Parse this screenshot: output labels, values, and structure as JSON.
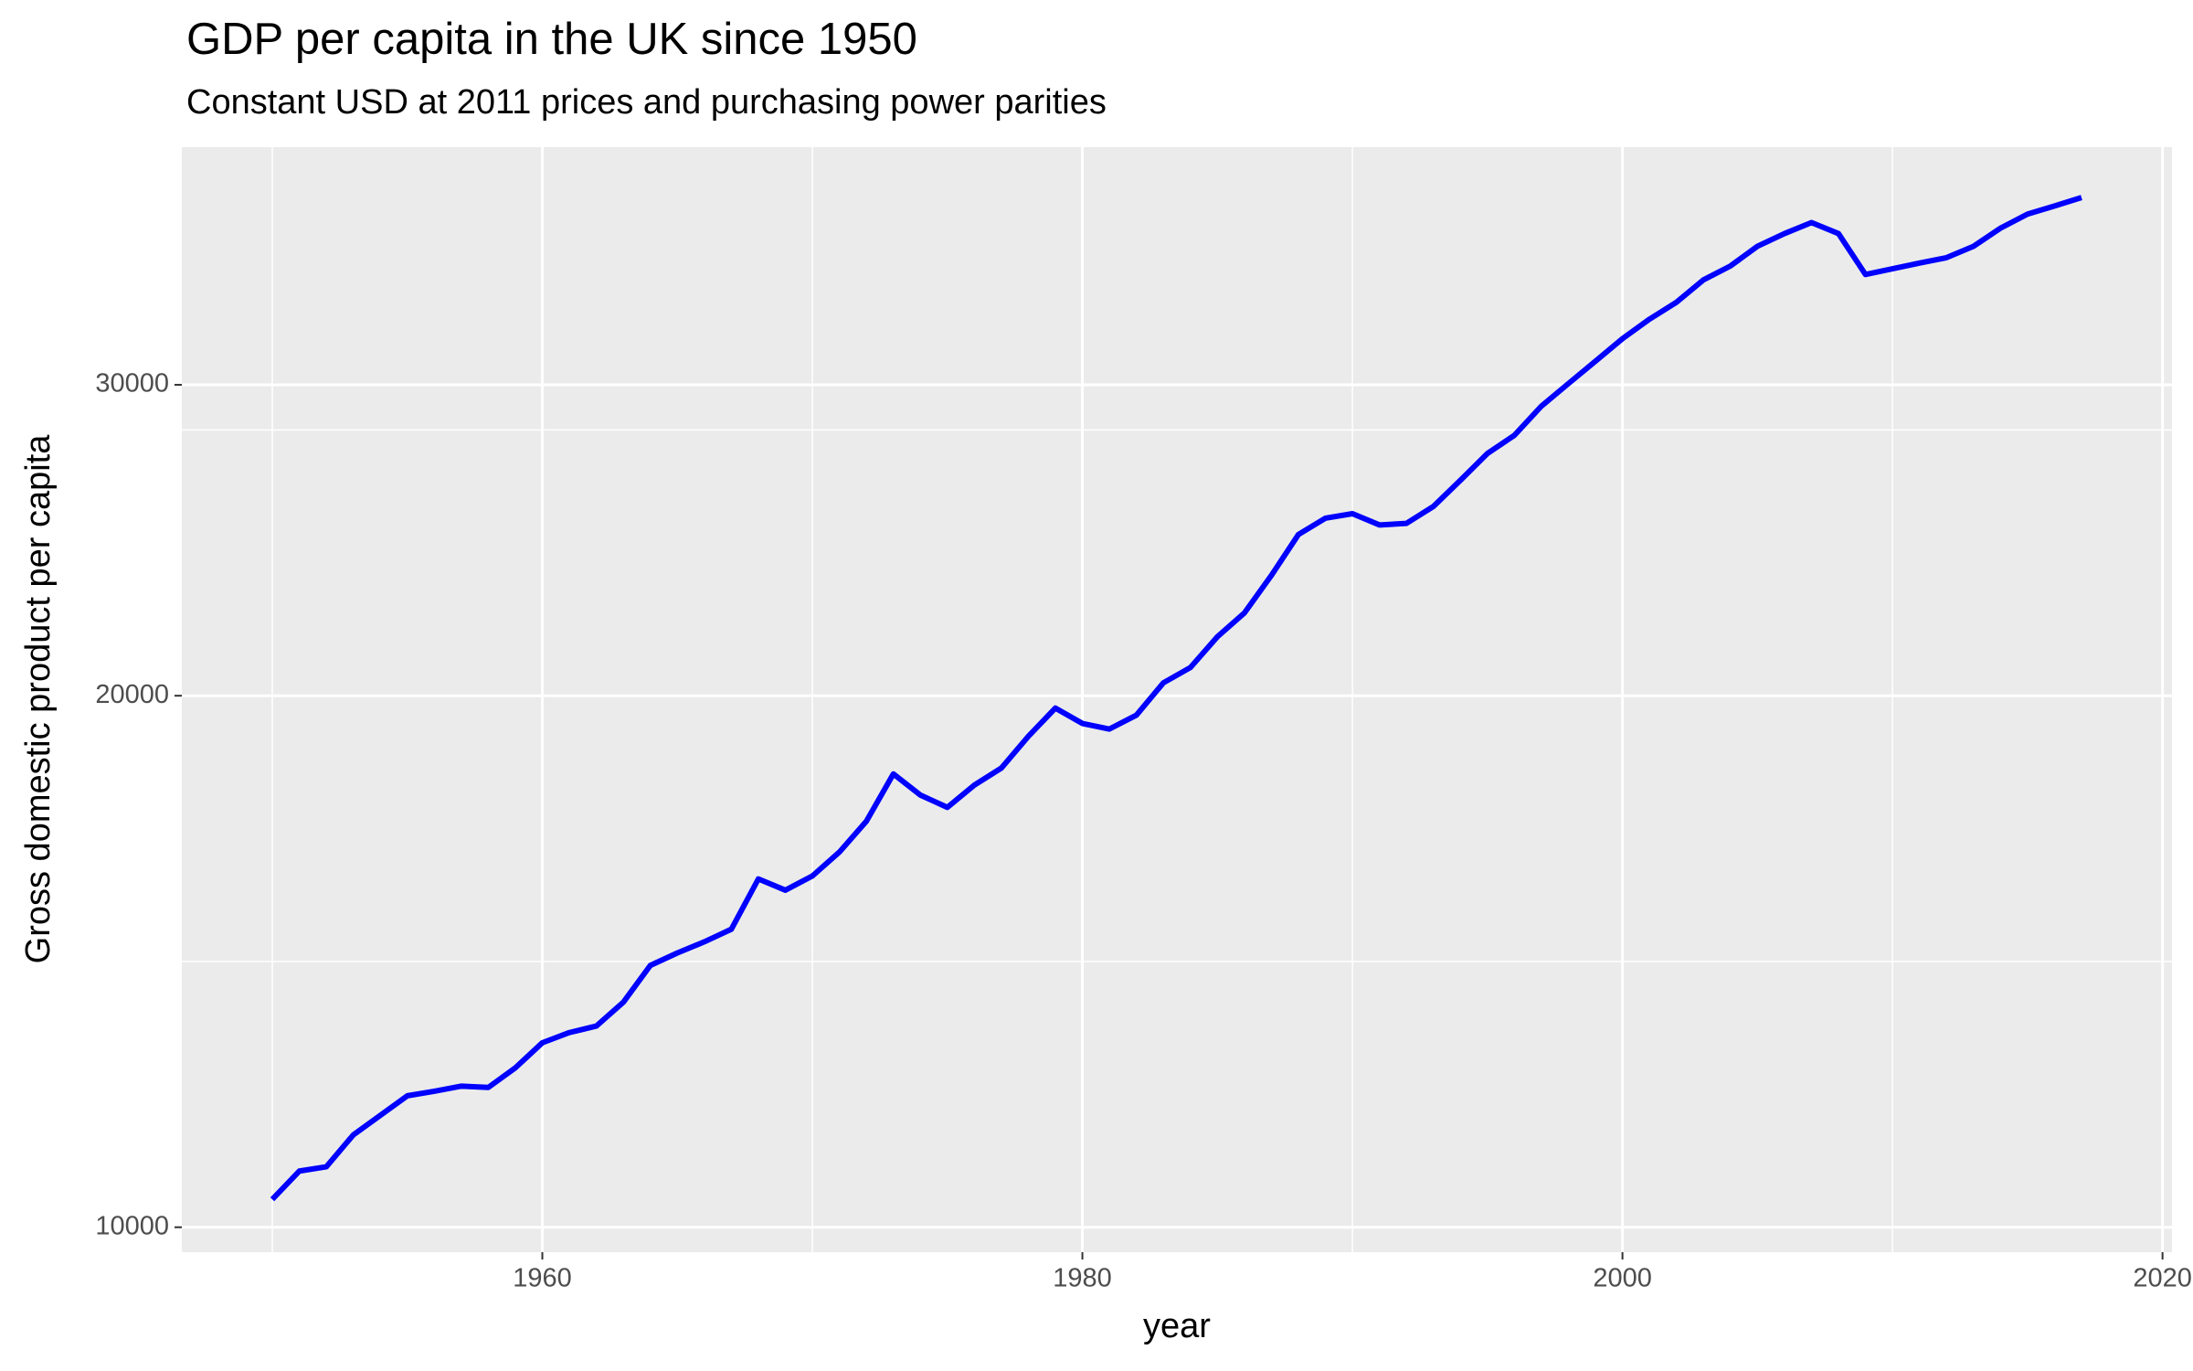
{
  "chart_data": {
    "type": "line",
    "title": "GDP per capita in the UK since 1950",
    "subtitle": "Constant USD at 2011 prices and purchasing power parities",
    "x_label": "year",
    "y_label": "Gross domestic product per capita",
    "x": [
      1950,
      1951,
      1952,
      1953,
      1954,
      1955,
      1956,
      1957,
      1958,
      1959,
      1960,
      1961,
      1962,
      1963,
      1964,
      1965,
      1966,
      1967,
      1968,
      1969,
      1970,
      1971,
      1972,
      1973,
      1974,
      1975,
      1976,
      1977,
      1978,
      1979,
      1980,
      1981,
      1982,
      1983,
      1984,
      1985,
      1986,
      1987,
      1988,
      1989,
      1990,
      1991,
      1992,
      1993,
      1994,
      1995,
      1996,
      1997,
      1998,
      1999,
      2000,
      2001,
      2002,
      2003,
      2004,
      2005,
      2006,
      2007,
      2008,
      2009,
      2010,
      2011,
      2012,
      2013,
      2014,
      2015,
      2016,
      2017
    ],
    "series": [
      {
        "color": "#0000ff",
        "values": [
          10370,
          10760,
          10820,
          11280,
          11570,
          11870,
          11940,
          12020,
          12000,
          12310,
          12720,
          12890,
          13000,
          13410,
          14070,
          14300,
          14510,
          14750,
          15750,
          15520,
          15810,
          16310,
          16980,
          18060,
          17570,
          17290,
          17800,
          18200,
          18970,
          19680,
          19290,
          19150,
          19500,
          20340,
          20750,
          21600,
          22280,
          23400,
          24680,
          25210,
          25360,
          24990,
          25040,
          25600,
          26490,
          27430,
          28090,
          29180,
          30050,
          30940,
          31860,
          32680,
          33410,
          34400,
          35030,
          35940,
          36540,
          37070,
          36540,
          34640,
          34900,
          35160,
          35410,
          35940,
          36800,
          37480,
          37880,
          38300
        ]
      }
    ],
    "xlim": [
      1946.65,
      2020.35
    ],
    "xticks": [
      1960,
      1980,
      2000,
      2020
    ],
    "ylim": [
      9680,
      40900
    ],
    "yticks": [
      10000,
      20000,
      30000
    ],
    "y_log_scale": true,
    "grid": true,
    "minor_grid": true
  }
}
